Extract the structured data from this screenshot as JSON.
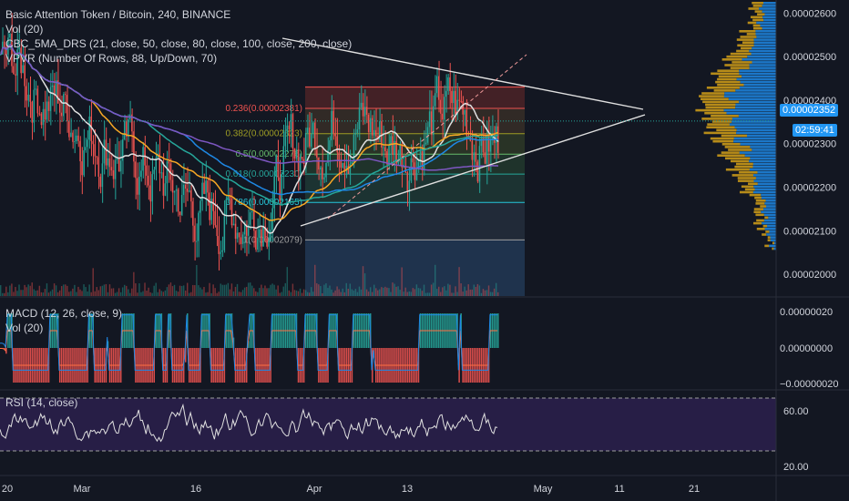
{
  "symbol_line": "Basic Attention Token / Bitcoin, 240, BINANCE",
  "indicators_main": [
    "Vol (20)",
    "CBC_5MA_DRS (21, close, 50, close, 80, close, 100, close, 200, close)",
    "VPVR (Number Of Rows, 88, Up/Down, 70)"
  ],
  "macd_label": "MACD (12, 26, close, 9)",
  "macd_vol_label": "Vol (20)",
  "rsi_label": "RSI (14, close)",
  "price_tag": "0.00002352",
  "countdown_tag": "02:59:41",
  "price_axis": [
    "0.00002600",
    "0.00002500",
    "0.00002400",
    "0.00002300",
    "0.00002200",
    "0.00002100",
    "0.00002000"
  ],
  "macd_axis": [
    "0.00000020",
    "0.00000000",
    "−0.00000020"
  ],
  "rsi_axis": [
    "60.00",
    "20.00"
  ],
  "time_axis": [
    "20",
    "Mar",
    "16",
    "Apr",
    "13",
    "May",
    "11",
    "21"
  ],
  "fib_levels": [
    {
      "label": "0.236(0.00002381)"
    },
    {
      "label": "0.382(0.00002323)"
    },
    {
      "label": "0.5(0.00002276)"
    },
    {
      "label": "0.618(0.00002230)"
    },
    {
      "label": "0.786(0.00002165)"
    },
    {
      "label": "1(0.00002079)"
    }
  ],
  "colors": {
    "bg": "#131722",
    "up": "#26a69a",
    "down": "#ef5350",
    "price": "#2196f3",
    "vp_up": "#1e88e5",
    "vp_down": "#d4a017",
    "rsi_band": "#2a1f4a"
  },
  "chart_data": {
    "type": "candlestick",
    "price_scale": {
      "min": 1.95e-05,
      "max": 2.63e-05
    },
    "current_price": 2.352e-05,
    "fib_retracement": [
      2.43e-05,
      2.381e-05,
      2.323e-05,
      2.276e-05,
      2.23e-05,
      2.165e-05,
      2.079e-05
    ],
    "rsi": {
      "upper": 70,
      "lower": 30,
      "ticks": [
        60,
        20
      ]
    }
  }
}
